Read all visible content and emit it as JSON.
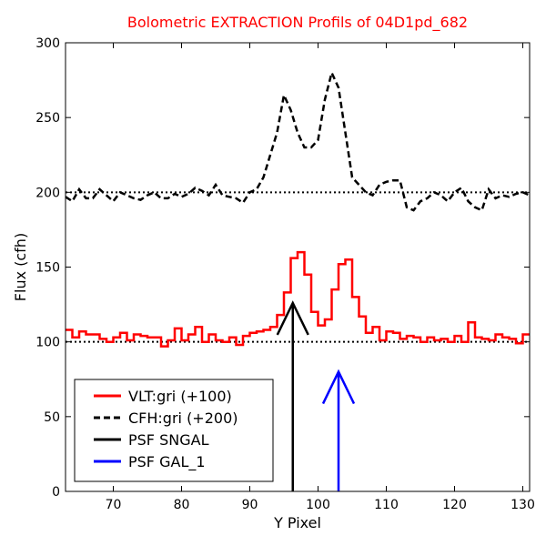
{
  "chart_data": {
    "type": "line",
    "title": "Bolometric EXTRACTION Profils of 04D1pd_682",
    "xlabel": "Y Pixel",
    "ylabel": "Flux (cfh)",
    "xlim": [
      63,
      131
    ],
    "ylim": [
      0,
      300
    ],
    "xticks": [
      "70",
      "80",
      "90",
      "100",
      "110",
      "120",
      "130"
    ],
    "yticks": [
      "0",
      "50",
      "100",
      "150",
      "200",
      "250",
      "300"
    ],
    "grid": false,
    "legend_position": "lower-left",
    "colors": {
      "title": "#ff0000",
      "vlt": "#ff0000",
      "cfh": "#000000",
      "psf_sngal": "#000000",
      "psf_gal1": "#0000ff"
    },
    "reference_lines": [
      {
        "y": 100,
        "style": "dotted"
      },
      {
        "y": 200,
        "style": "dotted"
      }
    ],
    "series": [
      {
        "name": "VLT:gri (+100)",
        "style": "steps",
        "x": [
          63,
          64,
          65,
          66,
          67,
          68,
          69,
          70,
          71,
          72,
          73,
          74,
          75,
          76,
          77,
          78,
          79,
          80,
          81,
          82,
          83,
          84,
          85,
          86,
          87,
          88,
          89,
          90,
          91,
          92,
          93,
          94,
          95,
          96,
          97,
          98,
          99,
          100,
          101,
          102,
          103,
          104,
          105,
          106,
          107,
          108,
          109,
          110,
          111,
          112,
          113,
          114,
          115,
          116,
          117,
          118,
          119,
          120,
          121,
          122,
          123,
          124,
          125,
          126,
          127,
          128,
          129,
          130
        ],
        "values": [
          108,
          103,
          107,
          105,
          105,
          102,
          100,
          103,
          106,
          101,
          105,
          104,
          103,
          103,
          97,
          101,
          109,
          101,
          105,
          110,
          100,
          105,
          101,
          100,
          103,
          98,
          104,
          106,
          107,
          108,
          110,
          118,
          133,
          156,
          160,
          145,
          120,
          111,
          115,
          135,
          152,
          155,
          130,
          117,
          106,
          110,
          101,
          107,
          106,
          102,
          104,
          103,
          100,
          103,
          101,
          102,
          100,
          104,
          100,
          113,
          103,
          102,
          101,
          105,
          103,
          102,
          99,
          105
        ]
      },
      {
        "name": "CFH:gri (+200)",
        "style": "line",
        "x": [
          63,
          64,
          65,
          66,
          67,
          68,
          69,
          70,
          71,
          72,
          73,
          74,
          75,
          76,
          77,
          78,
          79,
          80,
          81,
          82,
          83,
          84,
          85,
          86,
          87,
          88,
          89,
          90,
          91,
          92,
          93,
          94,
          95,
          96,
          97,
          98,
          99,
          100,
          101,
          102,
          103,
          104,
          105,
          106,
          107,
          108,
          109,
          110,
          111,
          112,
          113,
          114,
          115,
          116,
          117,
          118,
          119,
          120,
          121,
          122,
          123,
          124,
          125,
          126,
          127,
          128,
          129,
          130,
          131
        ],
        "values": [
          197,
          194,
          202,
          196,
          196,
          202,
          198,
          194,
          200,
          198,
          196,
          195,
          198,
          200,
          196,
          196,
          199,
          197,
          199,
          203,
          201,
          198,
          205,
          198,
          197,
          196,
          193,
          200,
          202,
          210,
          225,
          240,
          265,
          255,
          240,
          230,
          230,
          235,
          262,
          280,
          270,
          240,
          210,
          205,
          200,
          198,
          205,
          207,
          208,
          208,
          190,
          188,
          194,
          196,
          200,
          198,
          194,
          200,
          203,
          194,
          190,
          188,
          202,
          196,
          198,
          197,
          199,
          200,
          198
        ]
      },
      {
        "name": "PSF SNGAL",
        "style": "arrow",
        "x": 96.3,
        "y_base": 0,
        "y_tip": 126
      },
      {
        "name": "PSF GAL_1",
        "style": "arrow",
        "x": 103,
        "y_base": 0,
        "y_tip": 80
      }
    ]
  }
}
